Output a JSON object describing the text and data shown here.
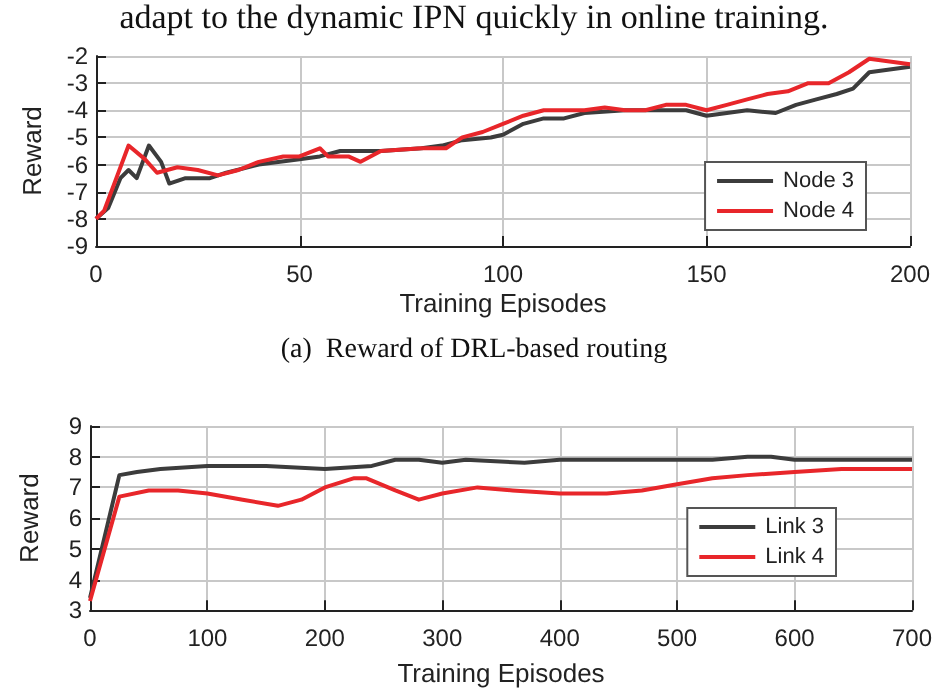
{
  "chart_data": [
    {
      "type": "line",
      "xlabel": "Training Episodes",
      "ylabel": "Reward",
      "annotations": [
        "adapt to the dynamic IPN quickly in online training.",
        "(a)  Reward of DRL-based routing"
      ],
      "xlim": [
        0,
        200
      ],
      "xticks": [
        0,
        50,
        100,
        150,
        200
      ],
      "ylim": [
        -9,
        -2
      ],
      "yticks": [
        -9,
        -8,
        -7,
        -6,
        -5,
        -4,
        -3,
        -2
      ],
      "grid": true,
      "legend": "bottom right",
      "line_style": "solid",
      "marker": "none",
      "series": [
        {
          "name": "Node 3",
          "color": "#3c3c3c",
          "x": [
            0,
            3,
            6,
            8,
            10,
            13,
            16,
            18,
            22,
            28,
            32,
            40,
            50,
            55,
            60,
            65,
            70,
            80,
            85,
            90,
            97,
            100,
            105,
            110,
            115,
            120,
            130,
            140,
            145,
            150,
            155,
            160,
            167,
            172,
            177,
            182,
            186,
            190,
            195,
            200
          ],
          "values": [
            -8,
            -7.6,
            -6.5,
            -6.2,
            -6.5,
            -5.3,
            -5.9,
            -6.7,
            -6.5,
            -6.5,
            -6.3,
            -6,
            -5.8,
            -5.7,
            -5.5,
            -5.5,
            -5.5,
            -5.4,
            -5.3,
            -5.1,
            -5,
            -4.9,
            -4.5,
            -4.3,
            -4.3,
            -4.1,
            -4,
            -4,
            -4,
            -4.2,
            -4.1,
            -4,
            -4.1,
            -3.8,
            -3.6,
            -3.4,
            -3.2,
            -2.6,
            -2.5,
            -2.4
          ]
        },
        {
          "name": "Node 4",
          "color": "#e8262a",
          "x": [
            0,
            2,
            5,
            8,
            12,
            15,
            20,
            25,
            30,
            35,
            40,
            46,
            50,
            55,
            57,
            62,
            65,
            70,
            80,
            86,
            90,
            95,
            100,
            105,
            110,
            115,
            120,
            125,
            130,
            135,
            140,
            145,
            150,
            155,
            160,
            165,
            170,
            175,
            180,
            185,
            190,
            195,
            200
          ],
          "values": [
            -8,
            -7.7,
            -6.5,
            -5.3,
            -5.8,
            -6.3,
            -6.1,
            -6.2,
            -6.4,
            -6.2,
            -5.9,
            -5.7,
            -5.7,
            -5.4,
            -5.7,
            -5.7,
            -5.9,
            -5.5,
            -5.4,
            -5.4,
            -5,
            -4.8,
            -4.5,
            -4.2,
            -4,
            -4,
            -4,
            -3.9,
            -4,
            -4,
            -3.8,
            -3.8,
            -4,
            -3.8,
            -3.6,
            -3.4,
            -3.3,
            -3,
            -3,
            -2.6,
            -2.1,
            -2.2,
            -2.3
          ]
        }
      ]
    },
    {
      "type": "line",
      "xlabel": "Training Episodes",
      "ylabel": "Reward",
      "xlim": [
        0,
        700
      ],
      "xticks": [
        0,
        100,
        200,
        300,
        400,
        500,
        600,
        700
      ],
      "ylim": [
        3,
        9
      ],
      "yticks": [
        3,
        4,
        5,
        6,
        7,
        8,
        9
      ],
      "grid": true,
      "legend": "right",
      "line_style": "solid",
      "marker": "none",
      "series": [
        {
          "name": "Link 3",
          "color": "#3c3c3c",
          "x": [
            0,
            25,
            40,
            60,
            100,
            150,
            200,
            240,
            260,
            280,
            300,
            320,
            370,
            400,
            450,
            500,
            530,
            560,
            580,
            600,
            650,
            700
          ],
          "values": [
            3.4,
            7.4,
            7.5,
            7.6,
            7.7,
            7.7,
            7.6,
            7.7,
            7.9,
            7.9,
            7.8,
            7.9,
            7.8,
            7.9,
            7.9,
            7.9,
            7.9,
            8,
            8,
            7.9,
            7.9,
            7.9
          ]
        },
        {
          "name": "Link 4",
          "color": "#e8262a",
          "x": [
            0,
            25,
            50,
            75,
            100,
            130,
            160,
            180,
            200,
            225,
            235,
            260,
            280,
            300,
            330,
            360,
            400,
            440,
            470,
            500,
            530,
            560,
            600,
            640,
            680,
            700
          ],
          "values": [
            3.3,
            6.7,
            6.9,
            6.9,
            6.8,
            6.6,
            6.4,
            6.6,
            7,
            7.3,
            7.3,
            6.9,
            6.6,
            6.8,
            7,
            6.9,
            6.8,
            6.8,
            6.9,
            7.1,
            7.3,
            7.4,
            7.5,
            7.6,
            7.6,
            7.6
          ]
        }
      ]
    }
  ]
}
